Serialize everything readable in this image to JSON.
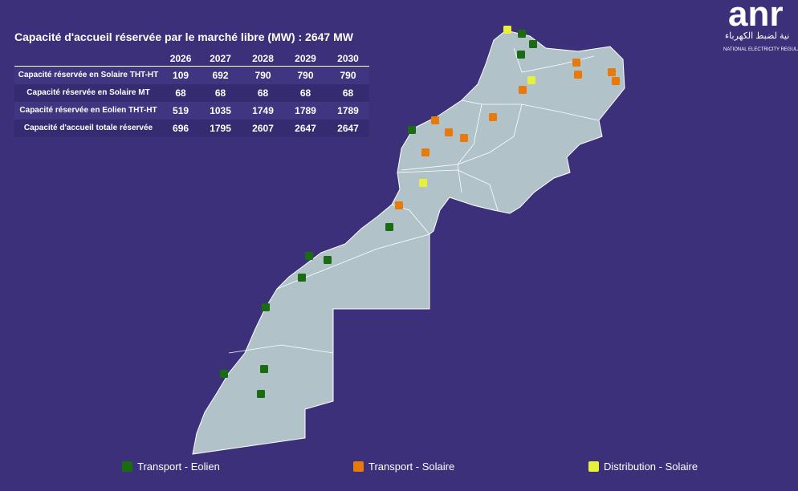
{
  "title": "Capacité d'accueil réservée par le marché libre (MW) : 2647 MW",
  "table": {
    "columns": [
      "2026",
      "2027",
      "2028",
      "2029",
      "2030"
    ],
    "rows": [
      {
        "label": "Capacité réservée en Solaire THT-HT",
        "values": [
          "109",
          "692",
          "790",
          "790",
          "790"
        ]
      },
      {
        "label": "Capacité réservée en Solaire MT",
        "values": [
          "68",
          "68",
          "68",
          "68",
          "68"
        ]
      },
      {
        "label": "Capacité réservée en Eolien THT-HT",
        "values": [
          "519",
          "1035",
          "1749",
          "1789",
          "1789"
        ]
      },
      {
        "label": "Capacité d'accueil totale réservée",
        "values": [
          "696",
          "1795",
          "2607",
          "2647",
          "2647"
        ]
      }
    ]
  },
  "legend": [
    {
      "label": "Transport - Eolien",
      "color": "#1a6b12"
    },
    {
      "label": "Transport - Solaire",
      "color": "#e87a0c"
    },
    {
      "label": "Distribution - Solaire",
      "color": "#e8f03a"
    }
  ],
  "logo": {
    "mark": "anr",
    "arabic": "نية لضبط الكهرباء",
    "english": "NATIONAL ELECTRICITY REGULA"
  }
}
